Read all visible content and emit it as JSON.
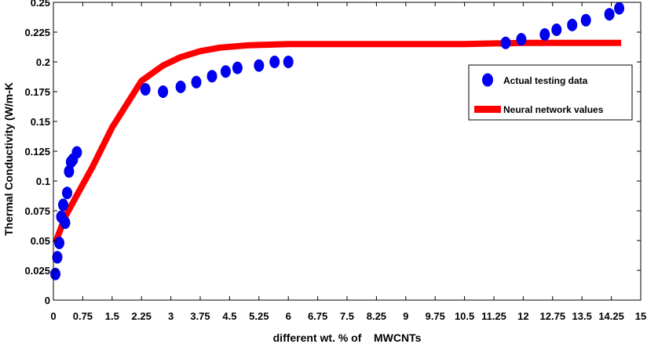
{
  "chart_data": {
    "type": "scatter+line",
    "title": "",
    "xlabel": "different wt. % of    MWCNTs",
    "ylabel": "Thermal Conductivity (W/m-K",
    "xlim": [
      0,
      15
    ],
    "ylim": [
      0,
      0.25
    ],
    "x_ticks": [
      "0",
      "0.75",
      "1.5",
      "2.25",
      "3",
      "3.75",
      "4.5",
      "5.25",
      "6",
      "6.75",
      "7.5",
      "8.25",
      "9",
      "9.75",
      "10.5",
      "11.25",
      "12",
      "12.75",
      "13.5",
      "14.25",
      "15"
    ],
    "y_ticks": [
      "0",
      "0.025",
      "0.05",
      "0.075",
      "0.1",
      "0.125",
      "0.15",
      "0.175",
      "0.2",
      "0.225",
      "0.25"
    ],
    "grid": false,
    "legend_position": "right",
    "series": [
      {
        "name": "Actual testing data",
        "kind": "scatter",
        "color": "#0000ee",
        "x": [
          0.05,
          0.1,
          0.15,
          0.2,
          0.25,
          0.3,
          0.35,
          0.4,
          0.45,
          0.5,
          0.6,
          2.35,
          2.8,
          3.25,
          3.65,
          4.05,
          4.4,
          4.7,
          5.25,
          5.65,
          6.0,
          11.55,
          11.95,
          12.55,
          12.85,
          13.25,
          13.6,
          14.2,
          14.45
        ],
        "y": [
          0.022,
          0.036,
          0.048,
          0.07,
          0.08,
          0.065,
          0.09,
          0.108,
          0.116,
          0.118,
          0.124,
          0.177,
          0.175,
          0.179,
          0.183,
          0.188,
          0.192,
          0.195,
          0.197,
          0.2,
          0.2,
          0.216,
          0.219,
          0.223,
          0.227,
          0.231,
          0.235,
          0.24,
          0.245
        ]
      },
      {
        "name": "Neural network values",
        "kind": "line",
        "color": "#ff0000",
        "x": [
          0.05,
          0.3,
          0.6,
          1.0,
          1.5,
          2.25,
          2.8,
          3.25,
          3.75,
          4.25,
          5.0,
          6.0,
          7.5,
          9.0,
          10.5,
          12.0,
          13.5,
          14.5
        ],
        "y": [
          0.048,
          0.07,
          0.088,
          0.112,
          0.145,
          0.184,
          0.197,
          0.204,
          0.209,
          0.212,
          0.214,
          0.215,
          0.215,
          0.215,
          0.215,
          0.216,
          0.216,
          0.216
        ]
      }
    ]
  }
}
